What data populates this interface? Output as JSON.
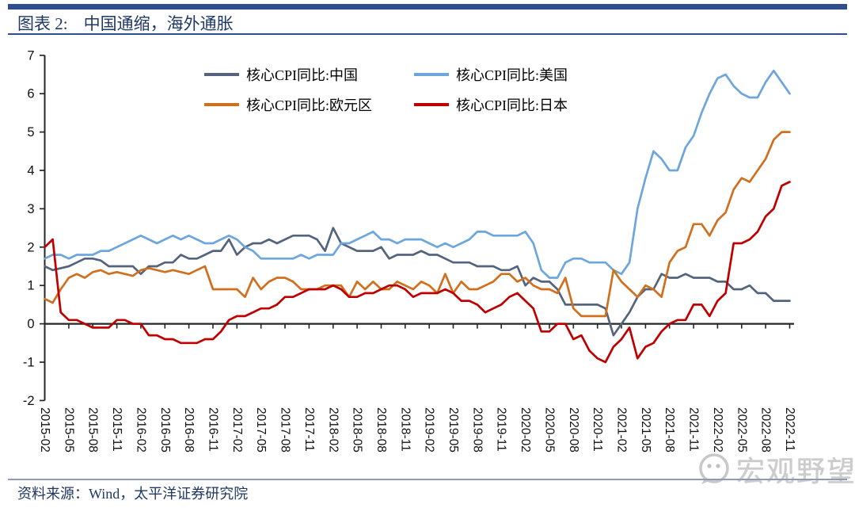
{
  "title": {
    "prefix": "图表 2:",
    "text": "中国通缩，海外通胀"
  },
  "footer": {
    "source": "资料来源：Wind，太平洋证券研究院"
  },
  "watermark": {
    "text": "宏观野望",
    "icon": "wechat-icon"
  },
  "colors": {
    "accent_navy": "#2F4E8F",
    "title_text": "#1F3864",
    "axis": "#262626",
    "footer_rule": "#8E9AB8",
    "watermark_gray": "#c9c9c9"
  },
  "chart_data": {
    "type": "line",
    "title": "核心CPI同比：中国/美国/欧元区/日本",
    "ylim": [
      -2,
      7
    ],
    "grid": false,
    "legend_position": "top-inside",
    "y_ticks": [
      7,
      6,
      5,
      4,
      3,
      2,
      1,
      0,
      -1,
      -2
    ],
    "tick_every": 3,
    "axis_color": "#262626",
    "x_range": [
      "2015-02",
      "2022-11"
    ],
    "x_tick_labels": [
      "2015-02",
      "2015-05",
      "2015-08",
      "2015-11",
      "2016-02",
      "2016-05",
      "2016-08",
      "2016-11",
      "2017-02",
      "2017-05",
      "2017-08",
      "2017-11",
      "2018-02",
      "2018-05",
      "2018-08",
      "2018-11",
      "2019-02",
      "2019-05",
      "2019-08",
      "2019-11",
      "2020-02",
      "2020-05",
      "2020-08",
      "2020-11",
      "2021-02",
      "2021-05",
      "2021-08",
      "2021-11",
      "2022-02",
      "2022-05",
      "2022-08",
      "2022-11"
    ],
    "series": [
      {
        "id": "cn",
        "label": "核心CPI同比:中国",
        "color": "#54647D",
        "values": [
          1.5,
          1.4,
          1.45,
          1.5,
          1.6,
          1.7,
          1.7,
          1.65,
          1.5,
          1.5,
          1.5,
          1.5,
          1.3,
          1.5,
          1.5,
          1.6,
          1.6,
          1.8,
          1.7,
          1.7,
          1.8,
          1.9,
          1.9,
          2.2,
          1.8,
          2.0,
          2.1,
          2.1,
          2.2,
          2.1,
          2.2,
          2.3,
          2.3,
          2.3,
          2.2,
          1.9,
          2.5,
          2.1,
          2.0,
          1.9,
          1.9,
          1.9,
          2.0,
          1.7,
          1.8,
          1.8,
          1.8,
          1.9,
          1.8,
          1.8,
          1.7,
          1.6,
          1.6,
          1.6,
          1.5,
          1.5,
          1.5,
          1.4,
          1.4,
          1.5,
          1.0,
          1.2,
          1.1,
          1.1,
          0.9,
          0.5,
          0.5,
          0.5,
          0.5,
          0.5,
          0.4,
          -0.3,
          0.0,
          0.3,
          0.7,
          0.9,
          0.9,
          1.3,
          1.2,
          1.2,
          1.3,
          1.2,
          1.2,
          1.2,
          1.1,
          1.1,
          0.9,
          0.9,
          1.0,
          0.8,
          0.8,
          0.6,
          0.6,
          0.6
        ]
      },
      {
        "id": "us",
        "label": "核心CPI同比:美国",
        "color": "#6CA6DC",
        "values": [
          1.7,
          1.8,
          1.8,
          1.7,
          1.8,
          1.8,
          1.8,
          1.9,
          1.9,
          2.0,
          2.1,
          2.2,
          2.3,
          2.2,
          2.1,
          2.2,
          2.3,
          2.2,
          2.3,
          2.2,
          2.1,
          2.1,
          2.2,
          2.3,
          2.2,
          2.0,
          1.9,
          1.7,
          1.7,
          1.7,
          1.7,
          1.7,
          1.8,
          1.7,
          1.8,
          1.8,
          1.8,
          2.1,
          2.1,
          2.2,
          2.3,
          2.4,
          2.2,
          2.2,
          2.1,
          2.2,
          2.2,
          2.2,
          2.1,
          2.0,
          2.1,
          2.0,
          2.1,
          2.2,
          2.4,
          2.4,
          2.3,
          2.3,
          2.3,
          2.3,
          2.4,
          2.1,
          1.4,
          1.2,
          1.2,
          1.6,
          1.7,
          1.7,
          1.6,
          1.6,
          1.6,
          1.4,
          1.3,
          1.6,
          3.0,
          3.8,
          4.5,
          4.3,
          4.0,
          4.0,
          4.6,
          4.9,
          5.5,
          6.0,
          6.4,
          6.5,
          6.2,
          6.0,
          5.9,
          5.9,
          6.3,
          6.6,
          6.3,
          6.0
        ]
      },
      {
        "id": "ez",
        "label": "核心CPI同比:欧元区",
        "color": "#D0701E",
        "values": [
          0.65,
          0.55,
          0.9,
          1.2,
          1.3,
          1.2,
          1.35,
          1.4,
          1.3,
          1.35,
          1.3,
          1.25,
          1.4,
          1.45,
          1.4,
          1.35,
          1.4,
          1.35,
          1.3,
          1.4,
          1.5,
          0.9,
          0.9,
          0.9,
          0.9,
          0.7,
          1.2,
          0.9,
          1.1,
          1.2,
          1.2,
          1.1,
          0.9,
          0.9,
          0.9,
          1.0,
          1.0,
          1.0,
          0.7,
          1.1,
          0.9,
          1.1,
          0.9,
          0.9,
          1.1,
          1.0,
          0.9,
          1.1,
          1.0,
          0.8,
          1.3,
          0.8,
          1.1,
          0.9,
          0.9,
          1.0,
          1.1,
          1.3,
          1.3,
          1.1,
          1.2,
          1.0,
          0.9,
          0.9,
          0.8,
          1.2,
          0.4,
          0.2,
          0.2,
          0.2,
          0.2,
          1.4,
          1.1,
          0.9,
          0.7,
          1.0,
          0.9,
          0.7,
          1.6,
          1.9,
          2.0,
          2.6,
          2.6,
          2.3,
          2.7,
          2.9,
          3.5,
          3.8,
          3.7,
          4.0,
          4.3,
          4.8,
          5.0,
          5.0
        ]
      },
      {
        "id": "jp",
        "label": "核心CPI同比:日本",
        "color": "#C00000",
        "values": [
          2.0,
          2.2,
          0.3,
          0.1,
          0.1,
          0.0,
          -0.1,
          -0.1,
          -0.1,
          0.1,
          0.1,
          0.0,
          0.0,
          -0.3,
          -0.3,
          -0.4,
          -0.4,
          -0.5,
          -0.5,
          -0.5,
          -0.4,
          -0.4,
          -0.2,
          0.1,
          0.2,
          0.2,
          0.3,
          0.4,
          0.4,
          0.5,
          0.7,
          0.7,
          0.8,
          0.9,
          0.9,
          0.9,
          1.0,
          0.9,
          0.7,
          0.7,
          0.8,
          0.8,
          0.9,
          1.0,
          1.0,
          0.9,
          0.7,
          0.8,
          0.8,
          0.8,
          0.9,
          0.8,
          0.6,
          0.6,
          0.5,
          0.3,
          0.4,
          0.5,
          0.7,
          0.8,
          0.6,
          0.4,
          -0.2,
          -0.2,
          0.0,
          0.0,
          -0.4,
          -0.3,
          -0.7,
          -0.9,
          -1.0,
          -0.6,
          -0.4,
          -0.1,
          -0.9,
          -0.6,
          -0.5,
          -0.2,
          0.0,
          0.1,
          0.1,
          0.5,
          0.5,
          0.2,
          0.6,
          0.8,
          2.1,
          2.1,
          2.2,
          2.4,
          2.8,
          3.0,
          3.6,
          3.7
        ]
      }
    ]
  }
}
